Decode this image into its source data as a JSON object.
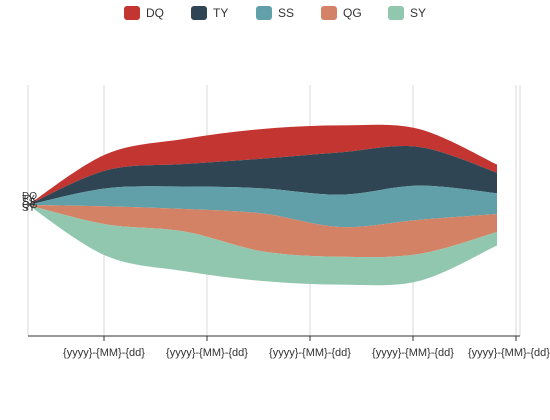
{
  "chart_data": {
    "type": "area",
    "stacked": true,
    "offset": "silhouette",
    "legend_position": "top",
    "grid": "vertical",
    "x_ticks": [
      "{yyyy}-{MM}-{dd}",
      "{yyyy}-{MM}-{dd}",
      "{yyyy}-{MM}-{dd}",
      "{yyyy}-{MM}-{dd}",
      "{yyyy}-{MM}-{dd}"
    ],
    "x_tick_overflow_text": "{yyyy}-{MM}-{dd}",
    "series": [
      {
        "name": "DQ",
        "color": "#c23531",
        "values": [
          0,
          18,
          28,
          33,
          30,
          20,
          9
        ]
      },
      {
        "name": "TY",
        "color": "#2f4554",
        "values": [
          0,
          20,
          25,
          33,
          47,
          43,
          23
        ]
      },
      {
        "name": "SS",
        "color": "#61a0a8",
        "values": [
          0,
          20,
          25,
          28,
          36,
          38,
          23
        ]
      },
      {
        "name": "QG",
        "color": "#d48265",
        "values": [
          0,
          20,
          25,
          42,
          33,
          38,
          20
        ]
      },
      {
        "name": "SY",
        "color": "#91c7ae",
        "values": [
          0,
          35,
          44,
          33,
          31,
          30,
          15
        ]
      }
    ]
  }
}
